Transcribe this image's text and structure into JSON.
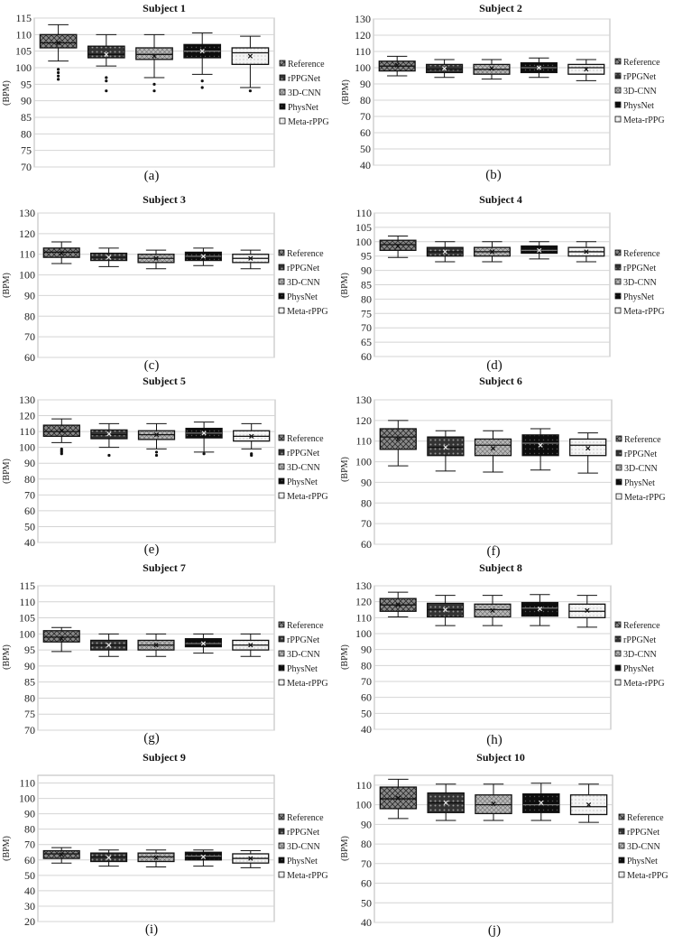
{
  "legend_labels": [
    "Reference",
    "rPPGNet",
    "3D-CNN",
    "PhysNet",
    "Meta-rPPG"
  ],
  "ylabel": "(BPM)",
  "series_colors": [
    "#8a8a8a",
    "#3a3a3a",
    "#b5b5b5",
    "#0d0d0d",
    "#f2f2f2"
  ],
  "grid": true,
  "legend_placement": "right",
  "chart_data": [
    {
      "type": "box",
      "title": "Subject 1",
      "caption": "(a)",
      "yticks": [
        70,
        75,
        80,
        85,
        90,
        95,
        100,
        105,
        110,
        115
      ],
      "ylim": [
        70,
        115
      ],
      "categories": [
        "Reference",
        "rPPGNet",
        "3D-CNN",
        "PhysNet",
        "Meta-rPPG"
      ],
      "series": [
        {
          "name": "Reference",
          "whisker_low": 102,
          "q1": 106,
          "median": 107.5,
          "q3": 110,
          "whisker_high": 113,
          "mean": 107.5,
          "outliers": [
            96.5,
            97.5,
            98.5,
            99.5
          ]
        },
        {
          "name": "rPPGNet",
          "whisker_low": 100.5,
          "q1": 103,
          "median": 104,
          "q3": 106.5,
          "whisker_high": 110,
          "mean": 104,
          "outliers": [
            93,
            96,
            97
          ]
        },
        {
          "name": "3D-CNN",
          "whisker_low": 97,
          "q1": 102.5,
          "median": 104,
          "q3": 106,
          "whisker_high": 110,
          "mean": 103.5,
          "outliers": [
            93,
            95
          ]
        },
        {
          "name": "PhysNet",
          "whisker_low": 98,
          "q1": 103,
          "median": 105,
          "q3": 107,
          "whisker_high": 110.5,
          "mean": 105,
          "outliers": [
            94,
            96
          ]
        },
        {
          "name": "Meta-rPPG",
          "whisker_low": 94,
          "q1": 101,
          "median": 104.5,
          "q3": 106,
          "whisker_high": 109.5,
          "mean": 103.5,
          "outliers": [
            93
          ]
        }
      ]
    },
    {
      "type": "box",
      "title": "Subject 2",
      "caption": "(b)",
      "yticks": [
        40,
        50,
        60,
        70,
        80,
        90,
        100,
        110,
        120,
        130
      ],
      "ylim": [
        40,
        130
      ],
      "categories": [
        "Reference",
        "rPPGNet",
        "3D-CNN",
        "PhysNet",
        "Meta-rPPG"
      ],
      "series": [
        {
          "name": "Reference",
          "whisker_low": 95,
          "q1": 98,
          "median": 101,
          "q3": 104,
          "whisker_high": 107,
          "mean": 101.5,
          "outliers": []
        },
        {
          "name": "rPPGNet",
          "whisker_low": 94,
          "q1": 97,
          "median": 99,
          "q3": 102,
          "whisker_high": 105,
          "mean": 99.5,
          "outliers": []
        },
        {
          "name": "3D-CNN",
          "whisker_low": 93,
          "q1": 96,
          "median": 99,
          "q3": 102,
          "whisker_high": 105,
          "mean": 99.5,
          "outliers": []
        },
        {
          "name": "PhysNet",
          "whisker_low": 94,
          "q1": 97,
          "median": 100,
          "q3": 103,
          "whisker_high": 106,
          "mean": 100,
          "outliers": []
        },
        {
          "name": "Meta-rPPG",
          "whisker_low": 92,
          "q1": 96,
          "median": 100,
          "q3": 102,
          "whisker_high": 105,
          "mean": 99,
          "outliers": []
        }
      ]
    },
    {
      "type": "box",
      "title": "Subject 3",
      "caption": "(c)",
      "yticks": [
        60,
        70,
        80,
        90,
        100,
        110,
        120,
        130
      ],
      "ylim": [
        60,
        130
      ],
      "categories": [
        "Reference",
        "rPPGNet",
        "3D-CNN",
        "PhysNet",
        "Meta-rPPG"
      ],
      "series": [
        {
          "name": "Reference",
          "whisker_low": 105.5,
          "q1": 108.5,
          "median": 111,
          "q3": 113,
          "whisker_high": 116,
          "mean": 110.5,
          "outliers": []
        },
        {
          "name": "rPPGNet",
          "whisker_low": 104,
          "q1": 107,
          "median": 108.5,
          "q3": 110.5,
          "whisker_high": 113,
          "mean": 108.5,
          "outliers": []
        },
        {
          "name": "3D-CNN",
          "whisker_low": 103,
          "q1": 106,
          "median": 108,
          "q3": 110,
          "whisker_high": 112,
          "mean": 108,
          "outliers": []
        },
        {
          "name": "PhysNet",
          "whisker_low": 104.5,
          "q1": 107,
          "median": 109,
          "q3": 111,
          "whisker_high": 113,
          "mean": 109,
          "outliers": []
        },
        {
          "name": "Meta-rPPG",
          "whisker_low": 103,
          "q1": 106,
          "median": 108,
          "q3": 110,
          "whisker_high": 112,
          "mean": 108,
          "outliers": []
        }
      ]
    },
    {
      "type": "box",
      "title": "Subject 4",
      "caption": "(d)",
      "yticks": [
        60,
        65,
        70,
        75,
        80,
        85,
        90,
        95,
        100,
        105,
        110
      ],
      "ylim": [
        60,
        110
      ],
      "categories": [
        "Reference",
        "rPPGNet",
        "3D-CNN",
        "PhysNet",
        "Meta-rPPG"
      ],
      "series": [
        {
          "name": "Reference",
          "whisker_low": 94.5,
          "q1": 97,
          "median": 99,
          "q3": 100.5,
          "whisker_high": 102,
          "mean": 98.5,
          "outliers": []
        },
        {
          "name": "rPPGNet",
          "whisker_low": 93,
          "q1": 95,
          "median": 96.5,
          "q3": 98,
          "whisker_high": 100,
          "mean": 96.5,
          "outliers": []
        },
        {
          "name": "3D-CNN",
          "whisker_low": 93,
          "q1": 95,
          "median": 96.5,
          "q3": 98,
          "whisker_high": 100,
          "mean": 96.5,
          "outliers": []
        },
        {
          "name": "PhysNet",
          "whisker_low": 94,
          "q1": 96,
          "median": 97,
          "q3": 98.5,
          "whisker_high": 100,
          "mean": 97,
          "outliers": []
        },
        {
          "name": "Meta-rPPG",
          "whisker_low": 93,
          "q1": 95,
          "median": 96.5,
          "q3": 98,
          "whisker_high": 100,
          "mean": 96.5,
          "outliers": []
        }
      ]
    },
    {
      "type": "box",
      "title": "Subject 5",
      "caption": "(e)",
      "yticks": [
        40,
        50,
        60,
        70,
        80,
        90,
        100,
        110,
        120,
        130
      ],
      "ylim": [
        40,
        130
      ],
      "categories": [
        "Reference",
        "rPPGNet",
        "3D-CNN",
        "PhysNet",
        "Meta-rPPG"
      ],
      "series": [
        {
          "name": "Reference",
          "whisker_low": 103,
          "q1": 107,
          "median": 110,
          "q3": 114,
          "whisker_high": 118,
          "mean": 110.5,
          "outliers": [
            96,
            97,
            98,
            99
          ]
        },
        {
          "name": "rPPGNet",
          "whisker_low": 100,
          "q1": 105.5,
          "median": 108,
          "q3": 111,
          "whisker_high": 115,
          "mean": 108.5,
          "outliers": [
            95
          ]
        },
        {
          "name": "3D-CNN",
          "whisker_low": 99,
          "q1": 105,
          "median": 108,
          "q3": 110.5,
          "whisker_high": 115,
          "mean": 108,
          "outliers": [
            95,
            97
          ]
        },
        {
          "name": "PhysNet",
          "whisker_low": 97,
          "q1": 106,
          "median": 109,
          "q3": 112,
          "whisker_high": 116,
          "mean": 109,
          "outliers": [
            96
          ]
        },
        {
          "name": "Meta-rPPG",
          "whisker_low": 99,
          "q1": 104,
          "median": 107,
          "q3": 110.5,
          "whisker_high": 115,
          "mean": 107,
          "outliers": [
            95,
            96
          ]
        }
      ]
    },
    {
      "type": "box",
      "title": "Subject 6",
      "caption": "(f)",
      "yticks": [
        60,
        70,
        80,
        90,
        100,
        110,
        120,
        130
      ],
      "ylim": [
        60,
        130
      ],
      "categories": [
        "Reference",
        "rPPGNet",
        "3D-CNN",
        "PhysNet",
        "Meta-rPPG"
      ],
      "series": [
        {
          "name": "Reference",
          "whisker_low": 98,
          "q1": 106,
          "median": 112,
          "q3": 116,
          "whisker_high": 120,
          "mean": 111,
          "outliers": []
        },
        {
          "name": "rPPGNet",
          "whisker_low": 95.5,
          "q1": 103,
          "median": 107,
          "q3": 112,
          "whisker_high": 115,
          "mean": 107,
          "outliers": []
        },
        {
          "name": "3D-CNN",
          "whisker_low": 95,
          "q1": 103,
          "median": 108,
          "q3": 111,
          "whisker_high": 115,
          "mean": 106.5,
          "outliers": []
        },
        {
          "name": "PhysNet",
          "whisker_low": 96,
          "q1": 103,
          "median": 109,
          "q3": 113,
          "whisker_high": 116,
          "mean": 108,
          "outliers": []
        },
        {
          "name": "Meta-rPPG",
          "whisker_low": 94.5,
          "q1": 103,
          "median": 108,
          "q3": 111,
          "whisker_high": 114,
          "mean": 106.5,
          "outliers": []
        }
      ]
    },
    {
      "type": "box",
      "title": "Subject 7",
      "caption": "(g)",
      "yticks": [
        70,
        75,
        80,
        85,
        90,
        95,
        100,
        105,
        110,
        115
      ],
      "ylim": [
        70,
        115
      ],
      "categories": [
        "Reference",
        "rPPGNet",
        "3D-CNN",
        "PhysNet",
        "Meta-rPPG"
      ],
      "series": [
        {
          "name": "Reference",
          "whisker_low": 94.5,
          "q1": 97.5,
          "median": 99,
          "q3": 101,
          "whisker_high": 102,
          "mean": 98.5,
          "outliers": []
        },
        {
          "name": "rPPGNet",
          "whisker_low": 93,
          "q1": 95,
          "median": 96.5,
          "q3": 98,
          "whisker_high": 100,
          "mean": 96.5,
          "outliers": []
        },
        {
          "name": "3D-CNN",
          "whisker_low": 93,
          "q1": 95,
          "median": 96.5,
          "q3": 98,
          "whisker_high": 100,
          "mean": 96.5,
          "outliers": []
        },
        {
          "name": "PhysNet",
          "whisker_low": 94,
          "q1": 96,
          "median": 97,
          "q3": 98.5,
          "whisker_high": 100,
          "mean": 97,
          "outliers": []
        },
        {
          "name": "Meta-rPPG",
          "whisker_low": 93,
          "q1": 95,
          "median": 96.5,
          "q3": 98,
          "whisker_high": 100,
          "mean": 96.5,
          "outliers": []
        }
      ]
    },
    {
      "type": "box",
      "title": "Subject 8",
      "caption": "(h)",
      "yticks": [
        40,
        50,
        60,
        70,
        80,
        90,
        100,
        110,
        120,
        130
      ],
      "ylim": [
        40,
        130
      ],
      "categories": [
        "Reference",
        "rPPGNet",
        "3D-CNN",
        "PhysNet",
        "Meta-rPPG"
      ],
      "series": [
        {
          "name": "Reference",
          "whisker_low": 110.5,
          "q1": 114,
          "median": 118,
          "q3": 122,
          "whisker_high": 126,
          "mean": 118,
          "outliers": []
        },
        {
          "name": "rPPGNet",
          "whisker_low": 105,
          "q1": 110.5,
          "median": 115,
          "q3": 119,
          "whisker_high": 124,
          "mean": 115,
          "outliers": []
        },
        {
          "name": "3D-CNN",
          "whisker_low": 105,
          "q1": 110.5,
          "median": 115,
          "q3": 118.5,
          "whisker_high": 124,
          "mean": 114.5,
          "outliers": []
        },
        {
          "name": "PhysNet",
          "whisker_low": 105,
          "q1": 111,
          "median": 116,
          "q3": 119.5,
          "whisker_high": 124.5,
          "mean": 115.5,
          "outliers": []
        },
        {
          "name": "Meta-rPPG",
          "whisker_low": 104,
          "q1": 110,
          "median": 114,
          "q3": 118.5,
          "whisker_high": 124,
          "mean": 114.5,
          "outliers": []
        }
      ]
    },
    {
      "type": "box",
      "title": "Subject 9",
      "caption": "(i)",
      "yticks": [
        20,
        30,
        40,
        50,
        60,
        70,
        80,
        90,
        100,
        110
      ],
      "ylim": [
        20,
        115
      ],
      "categories": [
        "Reference",
        "rPPGNet",
        "3D-CNN",
        "PhysNet",
        "Meta-rPPG"
      ],
      "series": [
        {
          "name": "Reference",
          "whisker_low": 58,
          "q1": 61,
          "median": 64,
          "q3": 66,
          "whisker_high": 68,
          "mean": 63.5,
          "outliers": []
        },
        {
          "name": "rPPGNet",
          "whisker_low": 56,
          "q1": 59,
          "median": 62,
          "q3": 64.5,
          "whisker_high": 66.5,
          "mean": 61.5,
          "outliers": []
        },
        {
          "name": "3D-CNN",
          "whisker_low": 55.5,
          "q1": 59,
          "median": 62,
          "q3": 64.5,
          "whisker_high": 66.5,
          "mean": 61.5,
          "outliers": []
        },
        {
          "name": "PhysNet",
          "whisker_low": 56,
          "q1": 60,
          "median": 62.5,
          "q3": 65,
          "whisker_high": 66.5,
          "mean": 62,
          "outliers": []
        },
        {
          "name": "Meta-rPPG",
          "whisker_low": 55,
          "q1": 58,
          "median": 61,
          "q3": 64,
          "whisker_high": 66,
          "mean": 61,
          "outliers": []
        }
      ]
    },
    {
      "type": "box",
      "title": "Subject 10",
      "caption": "(j)",
      "yticks": [
        40,
        50,
        60,
        70,
        80,
        90,
        100,
        110
      ],
      "ylim": [
        40,
        115
      ],
      "categories": [
        "Reference",
        "rPPGNet",
        "3D-CNN",
        "PhysNet",
        "Meta-rPPG"
      ],
      "series": [
        {
          "name": "Reference",
          "whisker_low": 93,
          "q1": 98,
          "median": 103,
          "q3": 109,
          "whisker_high": 113,
          "mean": 103.5,
          "outliers": []
        },
        {
          "name": "rPPGNet",
          "whisker_low": 92,
          "q1": 96,
          "median": 101,
          "q3": 106,
          "whisker_high": 110.5,
          "mean": 101,
          "outliers": []
        },
        {
          "name": "3D-CNN",
          "whisker_low": 92,
          "q1": 95.5,
          "median": 100,
          "q3": 105,
          "whisker_high": 110.5,
          "mean": 100.5,
          "outliers": []
        },
        {
          "name": "PhysNet",
          "whisker_low": 92,
          "q1": 96,
          "median": 100,
          "q3": 105.5,
          "whisker_high": 111,
          "mean": 101,
          "outliers": []
        },
        {
          "name": "Meta-rPPG",
          "whisker_low": 91,
          "q1": 95,
          "median": 99,
          "q3": 105,
          "whisker_high": 110.5,
          "mean": 100,
          "outliers": []
        }
      ]
    }
  ]
}
